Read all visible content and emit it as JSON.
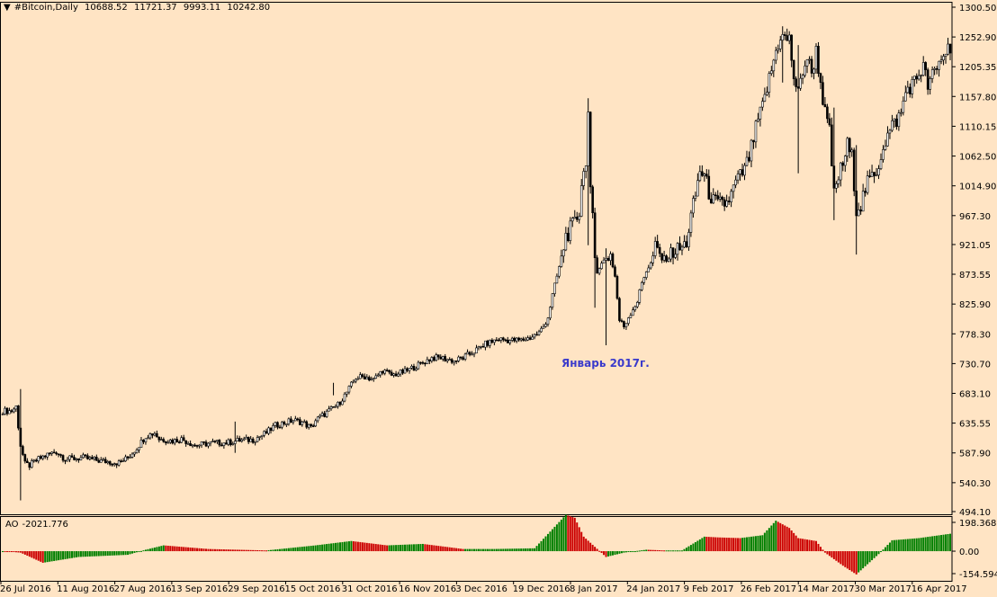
{
  "header": {
    "marker": "▼",
    "symbol": "#Bitcoin,Daily",
    "open": "10688.52",
    "high": "11721.37",
    "low": "9993.11",
    "close": "10242.80"
  },
  "indicator": {
    "name": "AO",
    "value": "-2021.776"
  },
  "colors": {
    "background": "#ffe4c4",
    "bull": "#ffffff",
    "bear": "#000000",
    "ao_up": "#008000",
    "ao_down": "#cc0000",
    "annotation": "#3a3acb"
  },
  "chart_data": [
    {
      "type": "candlestick",
      "title": "#Bitcoin,Daily",
      "annotation": "Январь 2017г.",
      "yticks": [
        "1300.50",
        "1252.90",
        "1205.35",
        "1157.80",
        "1110.15",
        "1062.50",
        "1014.90",
        "967.30",
        "921.05",
        "873.55",
        "825.90",
        "778.30",
        "730.70",
        "683.10",
        "635.55",
        "587.90",
        "540.30",
        "494.10"
      ],
      "ylim": [
        494.1,
        1300.5
      ],
      "xticks": [
        "26 Jul 2016",
        "11 Aug 2016",
        "27 Aug 2016",
        "13 Sep 2016",
        "29 Sep 2016",
        "15 Oct 2016",
        "31 Oct 2016",
        "16 Nov 2016",
        "3 Dec 2016",
        "19 Dec 2016",
        "8 Jan 2017",
        "24 Jan 2017",
        "9 Feb 2017",
        "26 Feb 2017",
        "14 Mar 2017",
        "30 Mar 2017",
        "16 Apr 2017"
      ],
      "close_path": [
        [
          0,
          655
        ],
        [
          4,
          655
        ],
        [
          6,
          662
        ],
        [
          8,
          600
        ],
        [
          10,
          570
        ],
        [
          12,
          568
        ],
        [
          16,
          578
        ],
        [
          20,
          585
        ],
        [
          24,
          590
        ],
        [
          28,
          578
        ],
        [
          36,
          580
        ],
        [
          44,
          575
        ],
        [
          52,
          572
        ],
        [
          56,
          580
        ],
        [
          60,
          596
        ],
        [
          64,
          615
        ],
        [
          68,
          620
        ],
        [
          70,
          610
        ],
        [
          76,
          607
        ],
        [
          80,
          610
        ],
        [
          86,
          600
        ],
        [
          94,
          604
        ],
        [
          100,
          604
        ],
        [
          106,
          608
        ],
        [
          112,
          609
        ],
        [
          118,
          620
        ],
        [
          122,
          632
        ],
        [
          130,
          640
        ],
        [
          134,
          637
        ],
        [
          138,
          628
        ],
        [
          140,
          640
        ],
        [
          146,
          655
        ],
        [
          150,
          665
        ],
        [
          154,
          685
        ],
        [
          158,
          708
        ],
        [
          162,
          710
        ],
        [
          166,
          705
        ],
        [
          170,
          720
        ],
        [
          174,
          712
        ],
        [
          180,
          718
        ],
        [
          184,
          725
        ],
        [
          188,
          732
        ],
        [
          192,
          740
        ],
        [
          196,
          740
        ],
        [
          202,
          735
        ],
        [
          206,
          740
        ],
        [
          210,
          748
        ],
        [
          216,
          762
        ],
        [
          222,
          770
        ],
        [
          226,
          768
        ],
        [
          232,
          768
        ],
        [
          236,
          772
        ],
        [
          240,
          780
        ],
        [
          242,
          790
        ],
        [
          244,
          805
        ],
        [
          246,
          840
        ],
        [
          248,
          870
        ],
        [
          250,
          900
        ],
        [
          252,
          935
        ],
        [
          254,
          945
        ],
        [
          256,
          955
        ],
        [
          258,
          975
        ],
        [
          259,
          1020
        ],
        [
          260,
          1035
        ],
        [
          261,
          1060
        ],
        [
          262,
          1130
        ],
        [
          263,
          1000
        ],
        [
          264,
          960
        ],
        [
          265,
          900
        ],
        [
          266,
          880
        ],
        [
          268,
          890
        ],
        [
          270,
          900
        ],
        [
          272,
          905
        ],
        [
          274,
          870
        ],
        [
          276,
          800
        ],
        [
          278,
          790
        ],
        [
          280,
          805
        ],
        [
          282,
          818
        ],
        [
          284,
          830
        ],
        [
          286,
          860
        ],
        [
          288,
          880
        ],
        [
          290,
          890
        ],
        [
          292,
          915
        ],
        [
          294,
          905
        ],
        [
          296,
          898
        ],
        [
          298,
          900
        ],
        [
          300,
          910
        ],
        [
          302,
          912
        ],
        [
          304,
          915
        ],
        [
          306,
          925
        ],
        [
          308,
          965
        ],
        [
          310,
          1000
        ],
        [
          312,
          1040
        ],
        [
          314,
          1030
        ],
        [
          316,
          1005
        ],
        [
          318,
          990
        ],
        [
          320,
          985
        ],
        [
          322,
          985
        ],
        [
          324,
          988
        ],
        [
          326,
          1000
        ],
        [
          328,
          1020
        ],
        [
          330,
          1030
        ],
        [
          332,
          1040
        ],
        [
          334,
          1060
        ],
        [
          336,
          1090
        ],
        [
          338,
          1120
        ],
        [
          340,
          1140
        ],
        [
          342,
          1170
        ],
        [
          344,
          1200
        ],
        [
          346,
          1230
        ],
        [
          348,
          1255
        ],
        [
          350,
          1250
        ],
        [
          352,
          1248
        ],
        [
          354,
          1190
        ],
        [
          356,
          1160
        ],
        [
          358,
          1200
        ],
        [
          360,
          1220
        ],
        [
          362,
          1195
        ],
        [
          364,
          1230
        ],
        [
          366,
          1180
        ],
        [
          368,
          1130
        ],
        [
          370,
          1100
        ],
        [
          372,
          1000
        ],
        [
          374,
          1030
        ],
        [
          376,
          1050
        ],
        [
          378,
          1080
        ],
        [
          380,
          1060
        ],
        [
          382,
          980
        ],
        [
          384,
          985
        ],
        [
          386,
          1010
        ],
        [
          388,
          1025
        ],
        [
          390,
          1030
        ],
        [
          392,
          1050
        ],
        [
          394,
          1080
        ],
        [
          396,
          1095
        ],
        [
          398,
          1110
        ],
        [
          400,
          1120
        ],
        [
          402,
          1130
        ],
        [
          404,
          1165
        ],
        [
          406,
          1175
        ],
        [
          408,
          1180
        ],
        [
          410,
          1195
        ],
        [
          412,
          1205
        ],
        [
          414,
          1175
        ],
        [
          416,
          1190
        ],
        [
          418,
          1200
        ],
        [
          420,
          1220
        ],
        [
          422,
          1230
        ],
        [
          424,
          1240
        ]
      ],
      "wicks": [
        {
          "day": 8,
          "low": 512,
          "high": 690
        },
        {
          "day": 104,
          "low": 588,
          "high": 638
        },
        {
          "day": 148,
          "low": 680,
          "high": 700
        },
        {
          "day": 262,
          "low": 920,
          "high": 1155
        },
        {
          "day": 265,
          "low": 820,
          "high": 980
        },
        {
          "day": 270,
          "low": 760,
          "high": 915
        },
        {
          "day": 349,
          "low": 1180,
          "high": 1270
        },
        {
          "day": 356,
          "low": 1035,
          "high": 1240
        },
        {
          "day": 372,
          "low": 960,
          "high": 1140
        },
        {
          "day": 382,
          "low": 905,
          "high": 1080
        }
      ]
    },
    {
      "type": "histogram",
      "title": "AO -2021.776",
      "yticks": [
        "198.368",
        "0.00",
        "-154.594"
      ],
      "ylim": [
        -154.594,
        198.368
      ],
      "up_color": "#008000",
      "down_color": "#cc0000",
      "keypoints": [
        [
          0,
          0
        ],
        [
          8,
          -10
        ],
        [
          18,
          -80
        ],
        [
          34,
          -40
        ],
        [
          56,
          -25
        ],
        [
          64,
          10
        ],
        [
          72,
          40
        ],
        [
          92,
          15
        ],
        [
          118,
          5
        ],
        [
          140,
          40
        ],
        [
          156,
          70
        ],
        [
          172,
          40
        ],
        [
          188,
          50
        ],
        [
          206,
          15
        ],
        [
          220,
          15
        ],
        [
          238,
          20
        ],
        [
          252,
          250
        ],
        [
          256,
          230
        ],
        [
          260,
          100
        ],
        [
          270,
          -40
        ],
        [
          278,
          -10
        ],
        [
          288,
          10
        ],
        [
          296,
          5
        ],
        [
          304,
          5
        ],
        [
          314,
          100
        ],
        [
          320,
          95
        ],
        [
          330,
          90
        ],
        [
          340,
          110
        ],
        [
          346,
          210
        ],
        [
          352,
          160
        ],
        [
          356,
          90
        ],
        [
          364,
          70
        ],
        [
          368,
          -10
        ],
        [
          376,
          -100
        ],
        [
          382,
          -160
        ],
        [
          392,
          -20
        ],
        [
          398,
          75
        ],
        [
          410,
          90
        ],
        [
          424,
          120
        ]
      ]
    }
  ]
}
